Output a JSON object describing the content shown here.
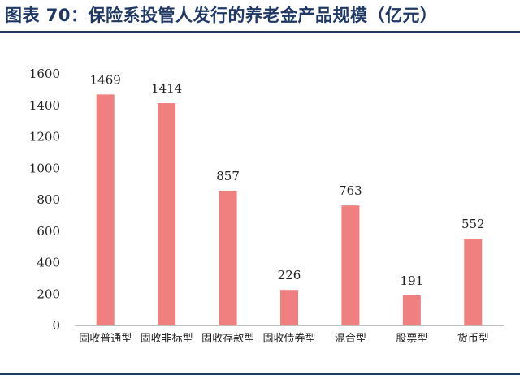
{
  "title": "图表 70：保险系投管人发行的养老金产品规模（亿元）",
  "colors": {
    "bar": "#f08080",
    "title": "#1f3864",
    "axis": "#bfbfbf"
  },
  "chart_data": {
    "type": "bar",
    "categories": [
      "固收普通型",
      "固收非标型",
      "固收存款型",
      "固收债券型",
      "混合型",
      "股票型",
      "货币型"
    ],
    "values": [
      1469,
      1414,
      857,
      226,
      763,
      191,
      552
    ],
    "ylim": [
      0,
      1600
    ],
    "yticks": [
      0,
      200,
      400,
      600,
      800,
      1000,
      1200,
      1400,
      1600
    ],
    "grid": false,
    "legend": "none"
  }
}
